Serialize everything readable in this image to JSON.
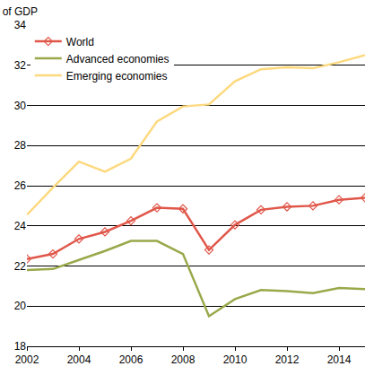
{
  "chart_data": {
    "type": "line",
    "ylabel": "per cent of GDP",
    "x": [
      2002,
      2003,
      2004,
      2005,
      2006,
      2007,
      2008,
      2009,
      2010,
      2011,
      2012,
      2013,
      2014,
      2015
    ],
    "series": [
      {
        "name": "World",
        "color": "#e0574a",
        "marker": "diamond",
        "values": [
          22.35,
          22.6,
          23.35,
          23.7,
          24.25,
          24.9,
          24.85,
          22.8,
          24.05,
          24.8,
          24.95,
          25.0,
          25.3,
          25.4
        ]
      },
      {
        "name": "Advanced economies",
        "color": "#9aa84a",
        "values": [
          21.8,
          21.85,
          22.3,
          22.75,
          23.25,
          23.25,
          22.6,
          19.5,
          20.35,
          20.8,
          20.75,
          20.65,
          20.9,
          20.85
        ]
      },
      {
        "name": "Emerging economies",
        "color": "#fdd97e",
        "values": [
          24.55,
          25.9,
          27.2,
          26.7,
          27.35,
          29.2,
          29.95,
          30.05,
          31.2,
          31.8,
          31.9,
          31.85,
          32.15,
          32.5
        ]
      }
    ],
    "xlim": [
      2002,
      2015
    ],
    "xticks": [
      2002,
      2004,
      2006,
      2008,
      2010,
      2012,
      2014
    ],
    "ylim": [
      18,
      34
    ],
    "yticks": [
      18,
      20,
      22,
      24,
      26,
      28,
      30,
      32,
      34
    ],
    "grid": true,
    "legend": "top-left"
  }
}
